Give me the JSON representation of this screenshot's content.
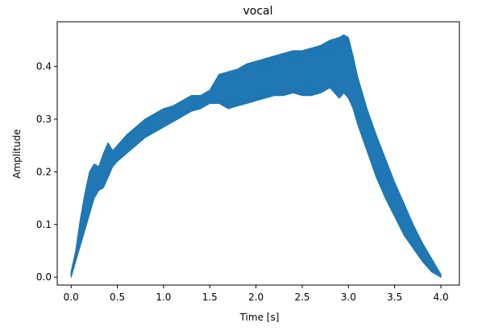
{
  "chart_data": {
    "type": "line",
    "title": "vocal",
    "xlabel": "Time [s]",
    "ylabel": "Amplitude",
    "xlim": [
      -0.15,
      4.2
    ],
    "ylim": [
      -0.015,
      0.485
    ],
    "xticks": [
      0.0,
      0.5,
      1.0,
      1.5,
      2.0,
      2.5,
      3.0,
      3.5,
      4.0
    ],
    "xtick_labels": [
      "0.0",
      "0.5",
      "1.0",
      "1.5",
      "2.0",
      "2.5",
      "3.0",
      "3.5",
      "4.0"
    ],
    "yticks": [
      0.0,
      0.1,
      0.2,
      0.3,
      0.4
    ],
    "ytick_labels": [
      "0.0",
      "0.1",
      "0.2",
      "0.3",
      "0.4"
    ],
    "grid": false,
    "series": [
      {
        "color": "#1f77b4",
        "x": [
          0.0,
          0.05,
          0.1,
          0.15,
          0.2,
          0.25,
          0.3,
          0.35,
          0.4,
          0.45,
          0.5,
          0.6,
          0.7,
          0.8,
          0.9,
          1.0,
          1.1,
          1.2,
          1.3,
          1.4,
          1.5,
          1.6,
          1.7,
          1.8,
          1.9,
          2.0,
          2.1,
          2.2,
          2.3,
          2.4,
          2.5,
          2.6,
          2.7,
          2.8,
          2.9,
          2.95,
          3.0,
          3.05,
          3.1,
          3.2,
          3.3,
          3.4,
          3.5,
          3.6,
          3.7,
          3.8,
          3.9,
          4.0
        ],
        "upper": [
          0.01,
          0.05,
          0.11,
          0.16,
          0.2,
          0.215,
          0.21,
          0.235,
          0.255,
          0.24,
          0.25,
          0.27,
          0.285,
          0.3,
          0.31,
          0.32,
          0.325,
          0.335,
          0.345,
          0.345,
          0.355,
          0.385,
          0.39,
          0.395,
          0.405,
          0.41,
          0.415,
          0.42,
          0.425,
          0.43,
          0.43,
          0.435,
          0.44,
          0.45,
          0.455,
          0.46,
          0.455,
          0.42,
          0.38,
          0.32,
          0.27,
          0.225,
          0.18,
          0.14,
          0.1,
          0.065,
          0.035,
          0.005
        ],
        "lower": [
          0.0,
          0.03,
          0.06,
          0.09,
          0.12,
          0.15,
          0.165,
          0.17,
          0.19,
          0.21,
          0.22,
          0.235,
          0.25,
          0.265,
          0.275,
          0.285,
          0.295,
          0.305,
          0.315,
          0.32,
          0.33,
          0.33,
          0.32,
          0.325,
          0.33,
          0.335,
          0.34,
          0.345,
          0.345,
          0.35,
          0.345,
          0.345,
          0.35,
          0.36,
          0.34,
          0.35,
          0.34,
          0.32,
          0.29,
          0.24,
          0.19,
          0.15,
          0.115,
          0.08,
          0.055,
          0.03,
          0.01,
          0.0
        ]
      }
    ]
  }
}
